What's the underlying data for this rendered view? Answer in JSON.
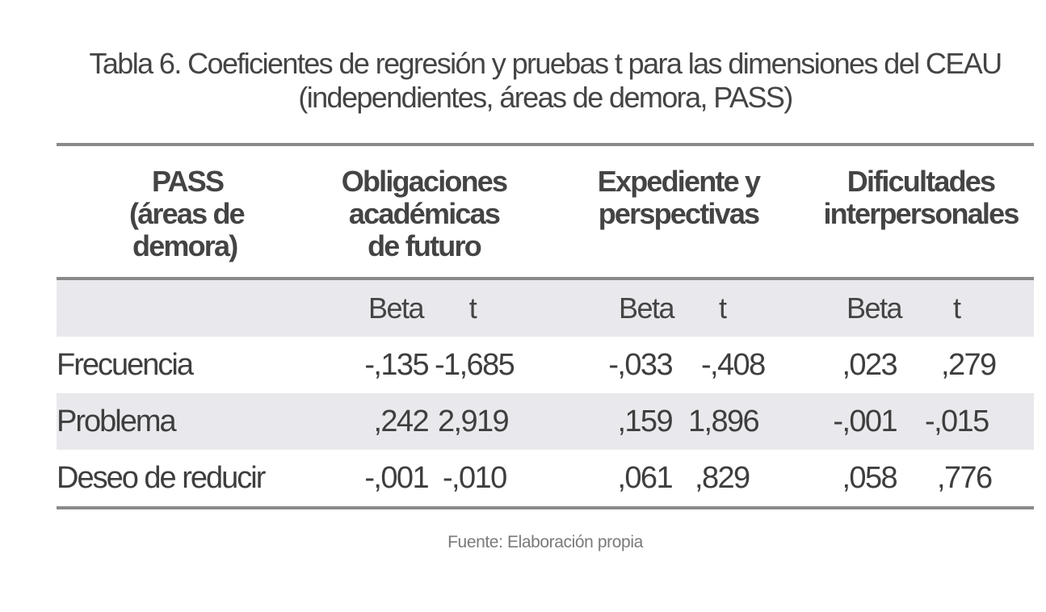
{
  "caption": {
    "line1": "Tabla 6. Coeficientes de regresión y pruebas t para las dimensiones del CEAU",
    "line2": "(independientes, áreas de demora, PASS)"
  },
  "table": {
    "header": {
      "col0": [
        "PASS",
        "(áreas de",
        "demora)"
      ],
      "col1": [
        "Obligaciones",
        "académicas",
        "de futuro"
      ],
      "col2": [
        "Expediente y",
        "perspectivas"
      ],
      "col3": [
        "Dificultades",
        "interpersonales"
      ]
    },
    "subheader": {
      "beta": "Beta",
      "t": "t"
    },
    "rows": [
      {
        "label": "Frecuencia",
        "values": [
          "-,135",
          "-1,685",
          "-,033",
          "-,408",
          ",023",
          ",279"
        ]
      },
      {
        "label": "Problema",
        "values": [
          ",242",
          "2,919",
          ",159",
          "1,896",
          "-,001",
          "-,015"
        ]
      },
      {
        "label": "Deseo de reducir",
        "values": [
          "-,001",
          "-,010",
          ",061",
          ",829",
          ",058",
          ",776"
        ]
      }
    ]
  },
  "source": "Fuente: Elaboración propia"
}
